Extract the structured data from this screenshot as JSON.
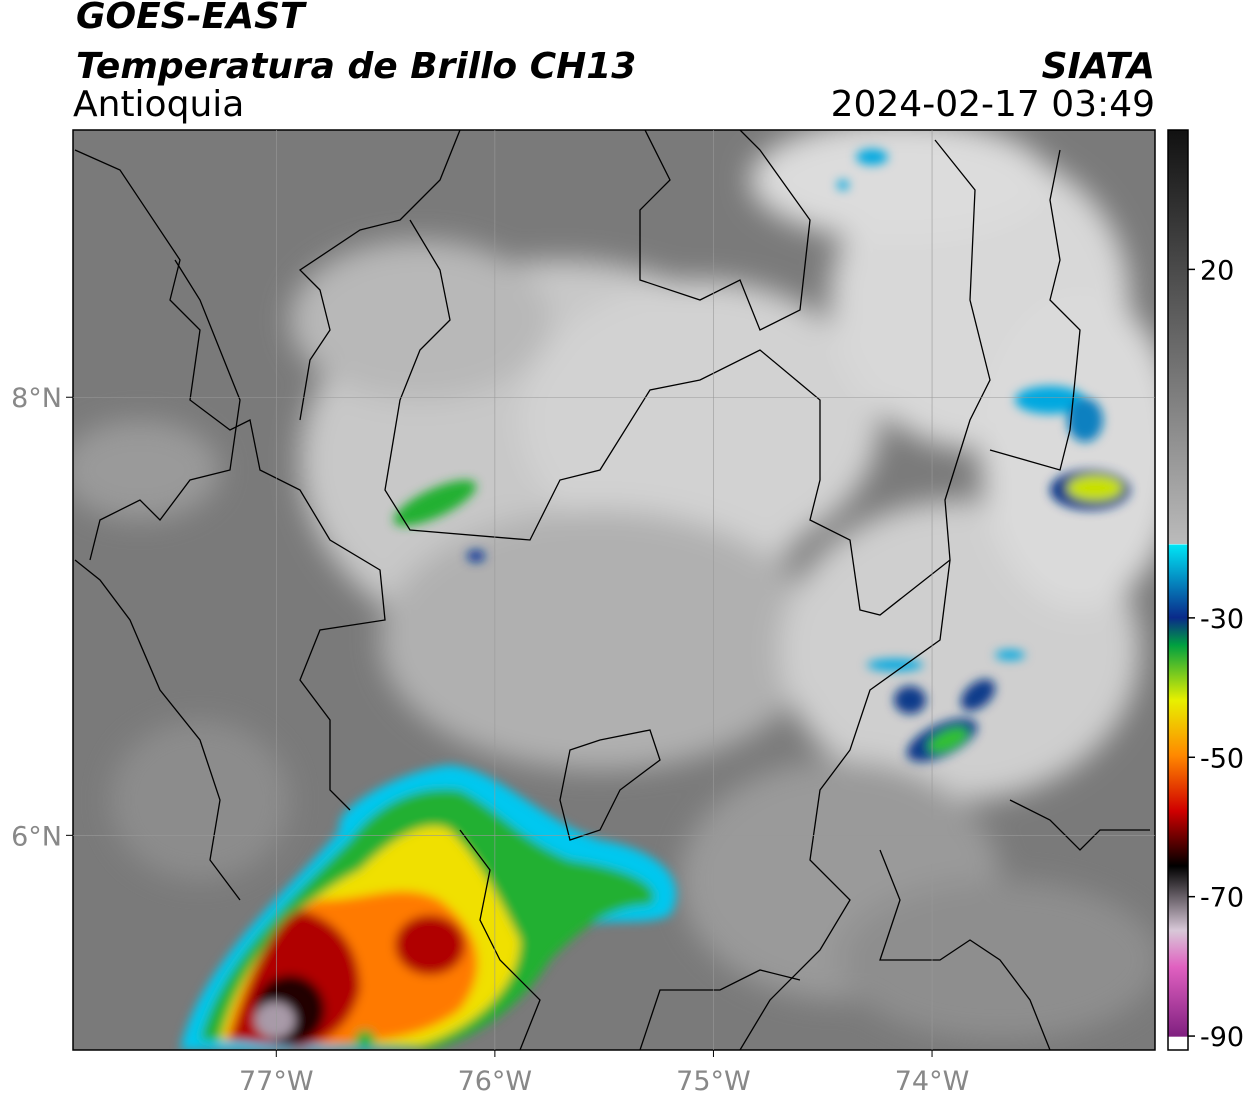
{
  "header": {
    "title": "GOES-EAST",
    "subtitle": "Temperatura de Brillo CH13",
    "region": "Antioquia",
    "source": "SIATA",
    "datetime": "2024-02-17 03:49"
  },
  "map": {
    "xlim": [
      -77.93,
      -72.98
    ],
    "ylim": [
      5.02,
      9.22
    ],
    "xticks": [
      {
        "value": -77,
        "label": "77°W"
      },
      {
        "value": -76,
        "label": "76°W"
      },
      {
        "value": -75,
        "label": "75°W"
      },
      {
        "value": -74,
        "label": "74°W"
      }
    ],
    "yticks": [
      {
        "value": 6,
        "label": "6°N"
      },
      {
        "value": 8,
        "label": "8°N"
      }
    ],
    "colorbar": {
      "lim": [
        -92,
        40
      ],
      "ticks": [
        20,
        -30,
        -50,
        -70,
        -90
      ]
    }
  }
}
